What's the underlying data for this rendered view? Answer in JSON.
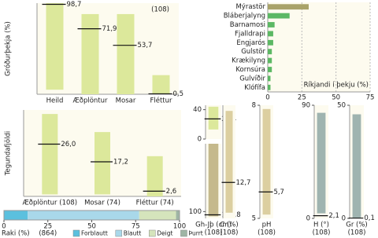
{
  "chart_data": [
    {
      "type": "range-bar",
      "ylabel": "Gróðurþekja (%)",
      "annotation": "(108)",
      "categories": [
        "Heild",
        "Æðplöntur",
        "Mosar",
        "Fléttur"
      ],
      "low": [
        5,
        0,
        0,
        0
      ],
      "high": [
        100,
        88,
        88,
        21
      ],
      "values": [
        98.7,
        71.9,
        53.7,
        0.5
      ],
      "value_labels": [
        "98,7",
        "71,9",
        "53,7",
        "0,5"
      ],
      "color": "#dce89b",
      "ylim": [
        0,
        100
      ]
    },
    {
      "type": "hbar",
      "xlabel": "Ríkjandi í þekju (%)",
      "categories": [
        "Mýrastör",
        "Bláberjalyng",
        "Barnamosi",
        "Fjalldrapi",
        "Engjarós",
        "Gulstör",
        "Krækilyng",
        "Kornsúra",
        "Gulvíðir",
        "Klófífa"
      ],
      "values": [
        30,
        16,
        5,
        4,
        4,
        3,
        3,
        3,
        2,
        2
      ],
      "colors": [
        "#a9a36a",
        "#5cb864",
        "#5cb864",
        "#5cb864",
        "#5cb864",
        "#5cb864",
        "#5cb864",
        "#5cb864",
        "#5cb864",
        "#5cb864"
      ],
      "xlim": [
        0,
        75
      ],
      "xticks": [
        0,
        25,
        50,
        75
      ],
      "grid": true
    },
    {
      "type": "range-bar",
      "ylabel": "Tegundafjöldi",
      "categories": [
        "Æðplöntur (108)",
        "Mosar (74)",
        "Fléttur (74)"
      ],
      "low": [
        1,
        1,
        0
      ],
      "high": [
        41,
        32,
        20
      ],
      "values": [
        26.0,
        17.2,
        2.6
      ],
      "value_labels": [
        "26,0",
        "17,2",
        "2,6"
      ],
      "color": "#dce89b",
      "ylim": [
        0,
        43
      ]
    },
    {
      "type": "range-bar",
      "low": [
        13
      ],
      "high": [
        44
      ],
      "values": [
        27.4
      ],
      "value_labels": [
        "27,4"
      ],
      "color": "#dce89b",
      "ylim": [
        0,
        46
      ],
      "yticks": [
        0,
        40
      ]
    },
    {
      "type": "range-bar",
      "inverted": true,
      "categories": [
        "Gh-Jþ (cm)"
      ],
      "annotation": "(108)",
      "low": [
        0
      ],
      "high": [
        107
      ],
      "values": [
        104.8
      ],
      "value_labels": [
        "104,8"
      ],
      "color": "#c5b98c",
      "ylim": [
        0,
        110
      ],
      "yticks": [
        100
      ]
    },
    {
      "type": "range-bar",
      "categories": [
        "C (%)"
      ],
      "annotation": "(108)",
      "low": [
        2
      ],
      "high": [
        38
      ],
      "values": [
        12.7
      ],
      "value_labels": [
        "12,7"
      ],
      "color": "#dccfa0",
      "ylim": [
        0,
        40
      ]
    },
    {
      "type": "range-bar",
      "categories": [
        "pH"
      ],
      "annotation": "(108)",
      "low": [
        5.1
      ],
      "high": [
        7.9
      ],
      "values": [
        5.7
      ],
      "value_labels": [
        "5,7"
      ],
      "color": "#dccfa0",
      "ylim": [
        5,
        8
      ],
      "yticks": [
        5,
        8
      ]
    },
    {
      "type": "range-bar",
      "categories": [
        "H (°)"
      ],
      "annotation": "(108)",
      "low": [
        4
      ],
      "high": [
        84
      ],
      "values": [
        2.1
      ],
      "value_labels": [
        "2,1"
      ],
      "color": "#9fb4b0",
      "ylim": [
        0,
        90
      ],
      "yticks": [
        0,
        90
      ]
    },
    {
      "type": "range-bar",
      "categories": [
        "Gr (%)"
      ],
      "annotation": "(108)",
      "low": [
        0
      ],
      "high": [
        46
      ],
      "values": [
        0.1
      ],
      "value_labels": [
        "0,1"
      ],
      "color": "#9fb4b0",
      "ylim": [
        0,
        50
      ],
      "yticks": [
        0,
        50
      ]
    },
    {
      "type": "stacked-hbar",
      "xlabel": "Raki (%)",
      "annotation": "(864)",
      "series": [
        {
          "name": "Forblautt",
          "color": "#5bc0de",
          "values": [
            13.5
          ]
        },
        {
          "name": "Blautt",
          "color": "#a9d8ea",
          "values": [
            63.5
          ]
        },
        {
          "name": "Deigt",
          "color": "#d5e4bc",
          "values": [
            21
          ]
        },
        {
          "name": "Þurrt",
          "color": "#9fb5a5",
          "values": [
            2
          ]
        }
      ],
      "xlim": [
        0,
        100
      ],
      "xticks": [
        0,
        25,
        50,
        75,
        100
      ]
    }
  ]
}
